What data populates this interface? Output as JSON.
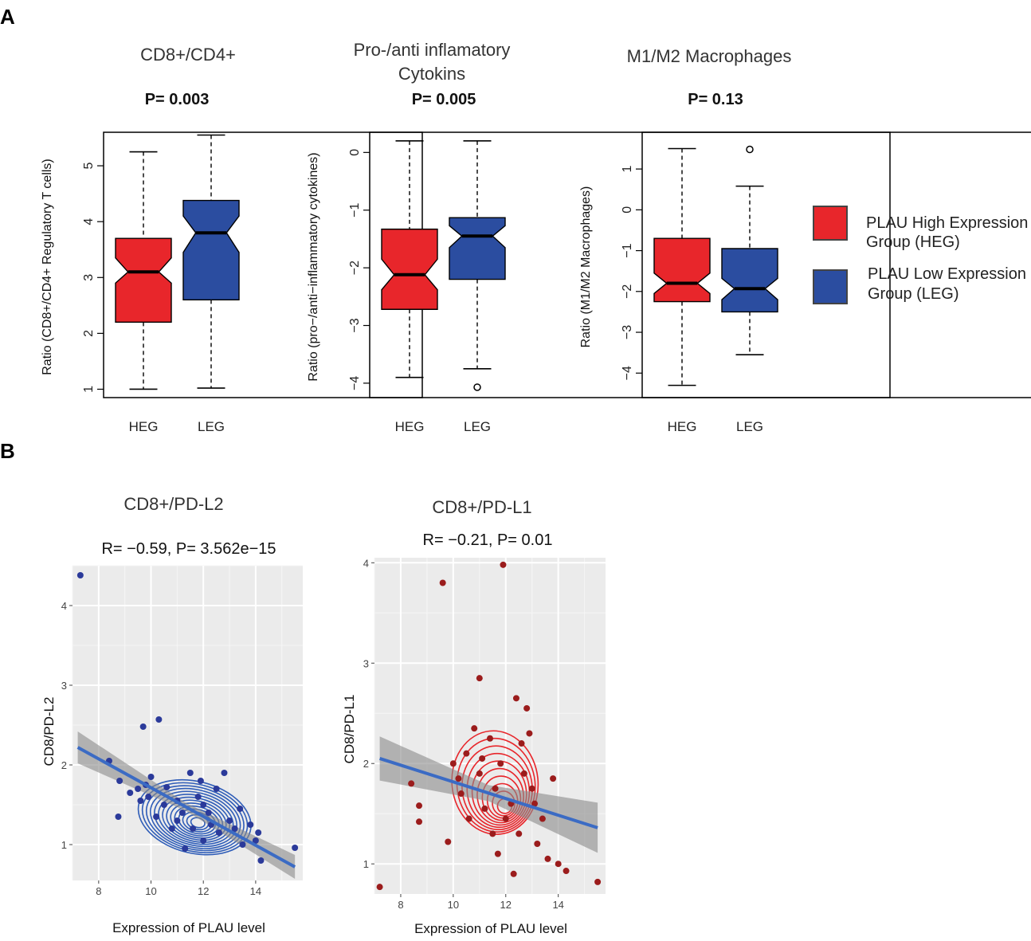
{
  "panel_a_label": "A",
  "panel_b_label": "B",
  "legend": {
    "heg_line1": "PLAU High Expression",
    "heg_line2": "Group (HEG)",
    "leg_line1": "PLAU Low Expression",
    "leg_line2": "Group (LEG)",
    "heg_color": "#e8262b",
    "leg_color": "#2b4da0"
  },
  "chart_data": [
    {
      "type": "boxplot",
      "title": "CD8+/CD4+",
      "pvalue": "P= 0.003",
      "ylabel": "Ratio (CD8+/CD4+ Regulatory T cells)",
      "xlabel": "",
      "categories": [
        "HEG",
        "LEG"
      ],
      "ylim": [
        0.85,
        5.6
      ],
      "yticks": [
        1,
        2,
        3,
        4,
        5
      ],
      "boxes": [
        {
          "name": "HEG",
          "whisker_low": 1.0,
          "q1": 2.2,
          "median": 3.1,
          "q3": 3.7,
          "whisker_high": 5.25,
          "notch_low": 2.9,
          "notch_high": 3.35,
          "outliers": [],
          "color": "#e8262b"
        },
        {
          "name": "LEG",
          "whisker_low": 1.02,
          "q1": 2.6,
          "median": 3.8,
          "q3": 4.38,
          "whisker_high": 5.55,
          "notch_low": 3.45,
          "notch_high": 4.1,
          "outliers": [],
          "color": "#2b4da0"
        }
      ]
    },
    {
      "type": "boxplot",
      "title_line1": "Pro-/anti inflamatory",
      "title_line2": "Cytokins",
      "pvalue": "P= 0.005",
      "ylabel": "Ratio (pro−/anti−inflammatory cytokines)",
      "xlabel": "",
      "categories": [
        "HEG",
        "LEG"
      ],
      "ylim": [
        -4.25,
        0.35
      ],
      "yticks": [
        0,
        -1,
        -2,
        -3,
        -4
      ],
      "yticklabels": [
        "0",
        "−1",
        "−2",
        "−3",
        "−4"
      ],
      "boxes": [
        {
          "name": "HEG",
          "whisker_low": -3.9,
          "q1": -2.72,
          "median": -2.12,
          "q3": -1.33,
          "whisker_high": 0.2,
          "notch_low": -2.38,
          "notch_high": -1.85,
          "outliers": [],
          "color": "#e8262b"
        },
        {
          "name": "LEG",
          "whisker_low": -3.75,
          "q1": -2.2,
          "median": -1.45,
          "q3": -1.13,
          "whisker_high": 0.2,
          "notch_low": -1.65,
          "notch_high": -1.27,
          "outliers": [
            -4.07
          ],
          "color": "#2b4da0"
        }
      ]
    },
    {
      "type": "boxplot",
      "title": "M1/M2 Macrophages",
      "pvalue": "P= 0.13",
      "ylabel": "Ratio (M1/M2 Macrophages)",
      "xlabel": "",
      "categories": [
        "HEG",
        "LEG"
      ],
      "ylim": [
        -4.6,
        1.9
      ],
      "yticks": [
        1,
        0,
        -1,
        -2,
        -3,
        -4
      ],
      "yticklabels": [
        "1",
        "0",
        "−1",
        "−2",
        "−3",
        "−4"
      ],
      "boxes": [
        {
          "name": "HEG",
          "whisker_low": -4.3,
          "q1": -2.25,
          "median": -1.8,
          "q3": -0.7,
          "whisker_high": 1.5,
          "notch_low": -2.05,
          "notch_high": -1.55,
          "outliers": [],
          "color": "#e8262b"
        },
        {
          "name": "LEG",
          "whisker_low": -3.55,
          "q1": -2.5,
          "median": -1.93,
          "q3": -0.95,
          "whisker_high": 0.58,
          "notch_low": -2.2,
          "notch_high": -1.68,
          "outliers": [
            1.48
          ],
          "color": "#2b4da0"
        }
      ]
    },
    {
      "type": "scatter",
      "title": "CD8+/PD-L2",
      "stat_label": "R=   −0.59, P= 3.562e−15",
      "xlabel": "Expression of PLAU level",
      "ylabel": "CD8/PD-L2",
      "xlim": [
        7.0,
        15.8
      ],
      "ylim": [
        0.55,
        4.5
      ],
      "xticks": [
        8,
        10,
        12,
        14
      ],
      "yticks": [
        1,
        2,
        3,
        4
      ],
      "point_color": "#2b3a9a",
      "contour_color": "#2f5db8",
      "fit": {
        "x0": 7.2,
        "y0": 2.22,
        "x1": 15.5,
        "y1": 0.72,
        "color": "#3b6bc4"
      },
      "density_center": [
        11.8,
        1.27
      ],
      "points": [
        [
          7.3,
          4.38
        ],
        [
          10.3,
          2.57
        ],
        [
          9.7,
          2.48
        ],
        [
          8.4,
          2.05
        ],
        [
          8.8,
          1.8
        ],
        [
          8.75,
          1.35
        ],
        [
          9.2,
          1.65
        ],
        [
          9.5,
          1.7
        ],
        [
          9.8,
          1.75
        ],
        [
          10.0,
          1.85
        ],
        [
          9.9,
          1.6
        ],
        [
          10.5,
          1.5
        ],
        [
          10.6,
          1.72
        ],
        [
          11.0,
          1.55
        ],
        [
          11.2,
          1.4
        ],
        [
          11.5,
          1.9
        ],
        [
          11.0,
          1.3
        ],
        [
          11.8,
          1.6
        ],
        [
          12.0,
          1.5
        ],
        [
          12.2,
          1.4
        ],
        [
          12.5,
          1.7
        ],
        [
          12.8,
          1.9
        ],
        [
          13.0,
          1.3
        ],
        [
          12.6,
          1.15
        ],
        [
          13.2,
          1.2
        ],
        [
          13.5,
          1.0
        ],
        [
          13.8,
          1.25
        ],
        [
          14.1,
          1.15
        ],
        [
          14.0,
          1.05
        ],
        [
          14.2,
          0.8
        ],
        [
          15.5,
          0.96
        ],
        [
          11.3,
          0.95
        ],
        [
          12.0,
          1.05
        ],
        [
          10.8,
          1.2
        ],
        [
          9.6,
          1.55
        ],
        [
          11.6,
          1.2
        ],
        [
          12.3,
          1.25
        ],
        [
          13.4,
          1.45
        ],
        [
          10.2,
          1.35
        ],
        [
          11.9,
          1.8
        ]
      ]
    },
    {
      "type": "scatter",
      "title": "CD8+/PD-L1",
      "stat_label": "R= −0.21, P= 0.01",
      "xlabel": "Expression of PLAU level",
      "ylabel": "CD8/PD-L1",
      "xlim": [
        7.0,
        15.8
      ],
      "ylim": [
        0.7,
        4.05
      ],
      "xticks": [
        8,
        10,
        12,
        14
      ],
      "yticks": [
        1,
        2,
        3,
        4
      ],
      "point_color": "#9b1c1c",
      "contour_color": "#e8262b",
      "fit": {
        "x0": 7.2,
        "y0": 2.05,
        "x1": 15.5,
        "y1": 1.36,
        "color": "#3b6bc4"
      },
      "density_center": [
        12.0,
        1.55
      ],
      "points": [
        [
          11.9,
          3.98
        ],
        [
          9.6,
          3.8
        ],
        [
          11.0,
          2.85
        ],
        [
          7.2,
          0.77
        ],
        [
          15.5,
          0.82
        ],
        [
          8.4,
          1.8
        ],
        [
          8.7,
          1.58
        ],
        [
          8.7,
          1.42
        ],
        [
          9.8,
          1.22
        ],
        [
          10.0,
          2.0
        ],
        [
          10.3,
          1.7
        ],
        [
          10.5,
          2.1
        ],
        [
          10.8,
          2.35
        ],
        [
          11.0,
          1.9
        ],
        [
          11.2,
          1.55
        ],
        [
          11.4,
          2.25
        ],
        [
          11.6,
          1.75
        ],
        [
          11.8,
          2.0
        ],
        [
          12.0,
          1.45
        ],
        [
          12.2,
          1.6
        ],
        [
          12.4,
          2.65
        ],
        [
          12.6,
          2.2
        ],
        [
          12.8,
          2.55
        ],
        [
          13.0,
          1.75
        ],
        [
          13.2,
          1.2
        ],
        [
          13.4,
          1.45
        ],
        [
          13.6,
          1.05
        ],
        [
          14.0,
          1.0
        ],
        [
          14.3,
          0.93
        ],
        [
          13.8,
          1.85
        ],
        [
          12.3,
          0.9
        ],
        [
          11.5,
          1.3
        ],
        [
          10.6,
          1.45
        ],
        [
          12.9,
          2.3
        ],
        [
          11.1,
          2.05
        ],
        [
          12.5,
          1.3
        ],
        [
          13.1,
          1.6
        ],
        [
          10.2,
          1.85
        ],
        [
          11.7,
          1.1
        ],
        [
          12.7,
          1.9
        ]
      ]
    }
  ]
}
